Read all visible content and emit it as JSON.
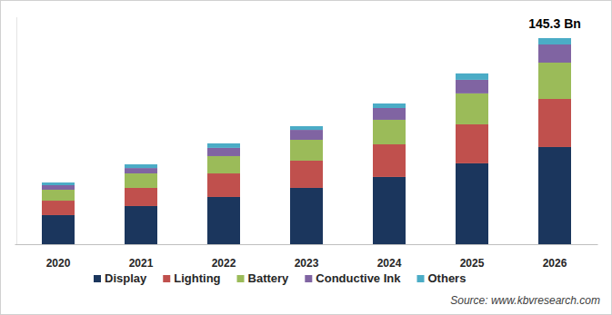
{
  "chart_data": {
    "type": "bar",
    "stacked": true,
    "tick_labels": "x",
    "grid": false,
    "categories": [
      "2020",
      "2021",
      "2022",
      "2023",
      "2024",
      "2025",
      "2026"
    ],
    "series": [
      {
        "name": "Display",
        "color": "#1b365d",
        "values": [
          20.5,
          26.9,
          33.3,
          39.7,
          47.4,
          57.0,
          68.5
        ]
      },
      {
        "name": "Lighting",
        "color": "#c0504d",
        "values": [
          10.2,
          12.8,
          16.6,
          19.2,
          23.0,
          27.5,
          33.9
        ]
      },
      {
        "name": "Battery",
        "color": "#9bbb59",
        "values": [
          7.7,
          10.2,
          12.2,
          14.7,
          17.3,
          21.8,
          25.6
        ]
      },
      {
        "name": "Conductive Ink",
        "color": "#8064a2",
        "values": [
          3.2,
          3.8,
          5.8,
          7.0,
          8.3,
          9.6,
          12.8
        ]
      },
      {
        "name": "Others",
        "color": "#4bacc6",
        "values": [
          1.9,
          2.6,
          3.2,
          2.6,
          3.2,
          4.5,
          4.5
        ]
      }
    ],
    "ylim": [
      0,
      160
    ],
    "legend": "bottom",
    "annotations": [
      {
        "text": "145.3 Bn",
        "category": "2026"
      }
    ],
    "source": "Source: www.kbvresearch.com"
  }
}
